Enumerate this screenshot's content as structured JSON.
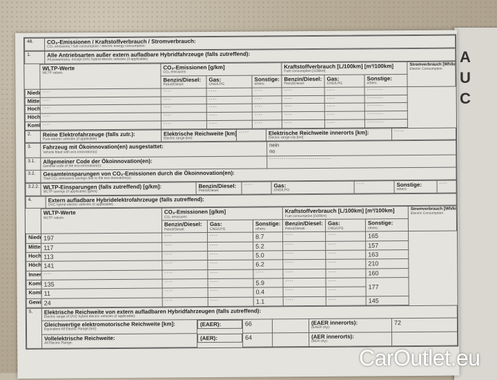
{
  "header": {
    "num": "48.",
    "title": "CO₂-Emissionen / Kraftstoffverbrauch / Stromverbrauch:",
    "subtitle": "CO₂ emissions / fuel consumption / electric energy consumption:"
  },
  "cols": {
    "wltp": "WLTP-Werte",
    "wltp_sub": "WLTP values",
    "co2": "CO₂-Emissionen [g/km]",
    "co2_sub": "CO₂ emissions",
    "fuel": "Kraftstoffverbrauch [L/100km] [m³/100km]",
    "fuel_sub": "Fuel consumption [/100km]",
    "elec": "Stromverbrauch [Wh/km]",
    "elec_sub": "Electric Consumption",
    "petrol": "Benzin/Diesel:",
    "petrol_sub": "Petrol/Diesel:",
    "gas": "Gas:",
    "gas_sub": "CNG/LPG",
    "other": "Sonstige:",
    "other_sub": "others:"
  },
  "s1": {
    "num": "1.",
    "title": "Alle Antriebsarten außer extern aufladbare Hybridfahrzeuge (falls zutreffend):",
    "subtitle": "All powertrains, except OVC hybrid electric vehicles (if applicable):",
    "rows": [
      {
        "label": "Niedrig",
        "sub": "/ Low:",
        "values": [
          "----",
          "----",
          "----",
          "----",
          "----",
          "----",
          "--------"
        ]
      },
      {
        "label": "Mittel",
        "sub": "/ Medium:",
        "values": [
          "----",
          "----",
          "----",
          "----",
          "----",
          "----",
          "--------"
        ]
      },
      {
        "label": "Hoch",
        "sub": "/ High:",
        "values": [
          "----",
          "----",
          "----",
          "----",
          "----",
          "----",
          "--------"
        ]
      },
      {
        "label": "Höchstwert",
        "sub": "/ Extra High:",
        "values": [
          "----",
          "----",
          "----",
          "----",
          "----",
          "----",
          "--------"
        ]
      },
      {
        "label": "Kombiniert",
        "sub": "/ Combined:",
        "values": [
          "----",
          "----",
          "----",
          "----",
          "----",
          "----",
          "--------"
        ]
      }
    ]
  },
  "s2": {
    "num": "2.",
    "title": "Reine Elektrofahrzeuge (falls zutr.):",
    "subtitle": "Pure electric vehicles (if applicable)",
    "range_label": "Elektrische Reichweite [km]:",
    "range_sub": "Electric range [km]",
    "range_value": "-----",
    "city_label": "Elektrische Reichweite innerorts [km]:",
    "city_sub": "Electric range city [km]",
    "city_value": "-----"
  },
  "s3": {
    "num": "3.",
    "title": "Fahrzeug mit Ökoinnovation(en) ausgestattet:",
    "subtitle": "Vehicle fitted with eco-innovation(s)",
    "value": "nein",
    "value_en": "no"
  },
  "s31": {
    "num": "3.1.",
    "title": "Allgemeiner Code der Ökoinnovation(en):",
    "subtitle": "General code of the eco-innovation(s):",
    "value": "------------------------------"
  },
  "s32": {
    "num": "3.2.",
    "title": "Gesamteinsparungen von CO₂-Emissionen durch die Ökoinnovation(en):",
    "subtitle": "Total CO₂ emissions savings due to the eco-innovation(s):"
  },
  "s322": {
    "num": "3.2.2.",
    "title": "WLTP-Einsparungen (falls zutreffend) [g/km]:",
    "subtitle": "WLTP savings (if applicable) [g/km]:",
    "petrol": "Benzin/Diesel:",
    "petrol_sub": "Petrol/Diesel:",
    "petrol_value": "----",
    "gas": "Gas:",
    "gas_sub": "CNG/LPG:",
    "gas_value": "----",
    "other": "Sonstige:",
    "other_sub": "others:",
    "other_value": "----"
  },
  "s4": {
    "num": "4.",
    "title": "Extern aufladbare Hybridelektrofahrzeuge (falls zutreffend):",
    "subtitle": "OVC hybrid electric vehicles (if applicable):",
    "rows": [
      {
        "label": "Niedrig",
        "sub": "/ Low:",
        "values": [
          "197",
          "----",
          "----",
          "8.7",
          "----",
          "----"
        ],
        "elec": "165"
      },
      {
        "label": "Mittel",
        "sub": "/ Medium:",
        "values": [
          "117",
          "----",
          "----",
          "5.2",
          "----",
          "----"
        ],
        "elec": "157"
      },
      {
        "label": "Hoch",
        "sub": "/ High:",
        "values": [
          "113",
          "----",
          "----",
          "5.0",
          "----",
          "----"
        ],
        "elec": "163"
      },
      {
        "label": "Höchstwert",
        "sub": "/ Extra High:",
        "values": [
          "141",
          "----",
          "----",
          "6.2",
          "----",
          "----"
        ],
        "elec": "210"
      },
      {
        "label": "Innerorts",
        "sub": "/ City:",
        "values": [
          "----",
          "----",
          "----",
          "----",
          "----",
          "----"
        ],
        "elec": "160"
      },
      {
        "label": "Komb. (Erhaltend)",
        "sub": "/ Comb. (sustaining):",
        "values": [
          "135",
          "----",
          "----",
          "5.9",
          "----",
          "----"
        ],
        "elec": "177"
      },
      {
        "label": "Komb. (Entladend)",
        "sub": "/ Comb. (depleting):",
        "values": [
          "11",
          "----",
          "----",
          "0.4",
          "----",
          "----"
        ],
        "elec": ""
      },
      {
        "label": "Gewichtet, komb.",
        "sub": "/ Weighted, comb.:",
        "values": [
          "24",
          "----",
          "----",
          "1.1",
          "----",
          "----"
        ],
        "elec": "145"
      }
    ]
  },
  "s5": {
    "num": "5.",
    "title": "Elektrische Reichweite von extern aufladbaren Hybridfahrzeugen (falls zutreffend):",
    "subtitle": "Electric range of OVC hybrid electric vehicles (if applicable):",
    "eaer_label": "Gleichwertige elektromotorische Reichweite [km]:",
    "eaer_sub": "Equivalent All Electric Range [km]:",
    "eaer_tag": "(EAER):",
    "eaer_value": "66",
    "eaer_city": "(EAER innerorts):",
    "eaer_city_sub": "(EAER city):",
    "eaer_city_value": "72",
    "aer_label": "Vollelektrische Reichweite:",
    "aer_sub": "All Electric Range:",
    "aer_tag": "(AER):",
    "aer_value": "64",
    "aer_city": "(AER innerorts):",
    "aer_city_sub": "(AER city):"
  },
  "right_page": {
    "letters": [
      "A",
      "U",
      "C"
    ]
  },
  "watermark": "CarOutlet.eu"
}
